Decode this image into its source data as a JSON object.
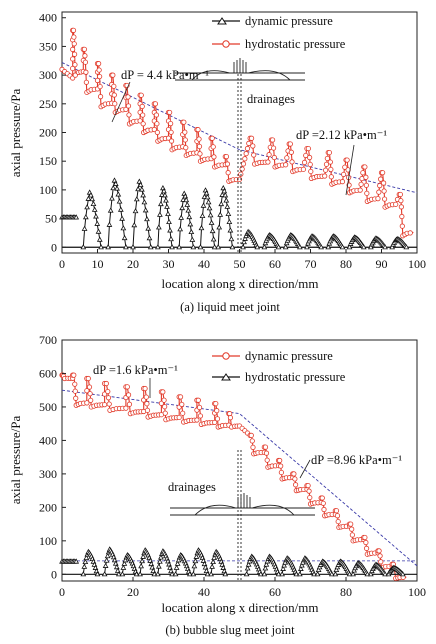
{
  "chart_data": [
    {
      "type": "line",
      "caption": "(a)   liquid meet joint",
      "xlabel": "location along x direction/mm",
      "ylabel": "axial pressure/Pa",
      "xlim": [
        0,
        100
      ],
      "ylim": [
        -10,
        410
      ],
      "xticks": [
        "0",
        "10",
        "20",
        "30",
        "40",
        "50",
        "60",
        "70",
        "80",
        "90",
        "100"
      ],
      "yticks": [
        "0",
        "50",
        "100",
        "150",
        "200",
        "250",
        "300",
        "350",
        "400"
      ],
      "legend": [
        "dynamic pressure",
        "hydrostatic pressure"
      ],
      "annotations": [
        "dP = 4.4 kPa•m⁻¹",
        "dP =2.12 kPa•m⁻¹",
        "drainages"
      ],
      "joint_x": 50,
      "series": [
        {
          "name": "dynamic pressure",
          "color": "#111111",
          "marker": "triangle",
          "lumps": [
            {
              "x": [
                0,
                4
              ],
              "base": 50,
              "peak": 52,
              "shape": "flat"
            },
            {
              "x": [
                6,
                11
              ],
              "base": 0,
              "peak": 100
            },
            {
              "x": [
                13,
                18
              ],
              "base": 0,
              "peak": 122
            },
            {
              "x": [
                20,
                25
              ],
              "base": 0,
              "peak": 120
            },
            {
              "x": [
                27,
                31
              ],
              "base": 0,
              "peak": 108
            },
            {
              "x": [
                33,
                37
              ],
              "base": 0,
              "peak": 98
            },
            {
              "x": [
                39,
                43
              ],
              "base": 0,
              "peak": 104
            },
            {
              "x": [
                44,
                48
              ],
              "base": 0,
              "peak": 108
            },
            {
              "x": [
                51,
                55
              ],
              "base": 0,
              "peak": 28
            },
            {
              "x": [
                57,
                61
              ],
              "base": 0,
              "peak": 22
            },
            {
              "x": [
                63,
                67
              ],
              "base": 0,
              "peak": 22
            },
            {
              "x": [
                69,
                73
              ],
              "base": 0,
              "peak": 20
            },
            {
              "x": [
                75,
                79
              ],
              "base": 0,
              "peak": 20
            },
            {
              "x": [
                81,
                85
              ],
              "base": 0,
              "peak": 18
            },
            {
              "x": [
                87,
                91
              ],
              "base": 0,
              "peak": 16
            },
            {
              "x": [
                93,
                97
              ],
              "base": 0,
              "peak": 15
            }
          ]
        },
        {
          "name": "hydrostatic pressure",
          "color": "#e23a2a",
          "marker": "circle",
          "steps": [
            {
              "x": [
                0,
                3
              ],
              "top": 310,
              "low": 295,
              "slope": true
            },
            {
              "x": [
                3,
                6
              ],
              "top": 378,
              "low": 300
            },
            {
              "x": [
                6,
                10
              ],
              "top": 345,
              "low": 270
            },
            {
              "x": [
                10,
                14
              ],
              "top": 320,
              "low": 245
            },
            {
              "x": [
                14,
                18
              ],
              "top": 300,
              "low": 235
            },
            {
              "x": [
                18,
                22
              ],
              "top": 282,
              "low": 215
            },
            {
              "x": [
                22,
                26
              ],
              "top": 265,
              "low": 200
            },
            {
              "x": [
                26,
                30
              ],
              "top": 250,
              "low": 185
            },
            {
              "x": [
                30,
                34
              ],
              "top": 235,
              "low": 170
            },
            {
              "x": [
                34,
                38
              ],
              "top": 218,
              "low": 160
            },
            {
              "x": [
                38,
                42
              ],
              "top": 205,
              "low": 150
            },
            {
              "x": [
                42,
                46
              ],
              "top": 190,
              "low": 140
            },
            {
              "x": [
                46,
                50
              ],
              "top": 158,
              "low": 115
            },
            {
              "x": [
                53,
                58
              ],
              "top": 190,
              "low": 145
            },
            {
              "x": [
                59,
                63
              ],
              "top": 187,
              "low": 140
            },
            {
              "x": [
                64,
                68
              ],
              "top": 180,
              "low": 132
            },
            {
              "x": [
                69,
                74
              ],
              "top": 172,
              "low": 120
            },
            {
              "x": [
                75,
                79
              ],
              "top": 165,
              "low": 110
            },
            {
              "x": [
                80,
                84
              ],
              "top": 152,
              "low": 95
            },
            {
              "x": [
                85,
                89
              ],
              "top": 140,
              "low": 80
            },
            {
              "x": [
                90,
                94
              ],
              "top": 130,
              "low": 70
            },
            {
              "x": [
                95,
                99
              ],
              "top": 92,
              "low": 20
            }
          ],
          "trend": [
            [
              0,
              322
            ],
            [
              50,
              170
            ],
            [
              50,
              170
            ],
            [
              100,
              95
            ]
          ]
        }
      ]
    },
    {
      "type": "line",
      "caption": "(b)   bubble slug meet joint",
      "xlabel": "location along x direction/mm",
      "ylabel": "axial pressure/Pa",
      "xlim": [
        0,
        100
      ],
      "ylim": [
        -20,
        700
      ],
      "xticks": [
        "0",
        "20",
        "40",
        "60",
        "80",
        "100"
      ],
      "yticks": [
        "0",
        "100",
        "200",
        "300",
        "400",
        "500",
        "600",
        "700"
      ],
      "legend": [
        "dynamic pressure",
        "hydrostatic pressure"
      ],
      "annotations": [
        "dP =1.6 kPa•m⁻¹",
        "dP =8.96 kPa•m⁻¹",
        "drainages"
      ],
      "joint_x": 50,
      "series": [
        {
          "name": "dynamic pressure",
          "color": "#e23a2a",
          "marker": "circle",
          "steps": [
            {
              "x": [
                0,
                3
              ],
              "top": 595,
              "low": 585
            },
            {
              "x": [
                3,
                7
              ],
              "top": 595,
              "low": 505
            },
            {
              "x": [
                7,
                12
              ],
              "top": 585,
              "low": 500
            },
            {
              "x": [
                12,
                18
              ],
              "top": 570,
              "low": 490
            },
            {
              "x": [
                18,
                23
              ],
              "top": 560,
              "low": 480
            },
            {
              "x": [
                23,
                28
              ],
              "top": 555,
              "low": 470
            },
            {
              "x": [
                28,
                33
              ],
              "top": 545,
              "low": 462
            },
            {
              "x": [
                33,
                38
              ],
              "top": 530,
              "low": 455
            },
            {
              "x": [
                38,
                43
              ],
              "top": 520,
              "low": 448
            },
            {
              "x": [
                43,
                47
              ],
              "top": 510,
              "low": 440
            },
            {
              "x": [
                47,
                50
              ],
              "top": 480,
              "low": 440
            },
            {
              "x": [
                53,
                57
              ],
              "top": 415,
              "low": 360
            },
            {
              "x": [
                57,
                61
              ],
              "top": 380,
              "low": 320
            },
            {
              "x": [
                61,
                65
              ],
              "top": 340,
              "low": 285
            },
            {
              "x": [
                65,
                69
              ],
              "top": 300,
              "low": 250
            },
            {
              "x": [
                69,
                73
              ],
              "top": 265,
              "low": 210
            },
            {
              "x": [
                73,
                77
              ],
              "top": 228,
              "low": 175
            },
            {
              "x": [
                77,
                81
              ],
              "top": 190,
              "low": 140
            },
            {
              "x": [
                81,
                85
              ],
              "top": 150,
              "low": 100
            },
            {
              "x": [
                85,
                89
              ],
              "top": 110,
              "low": 60
            },
            {
              "x": [
                89,
                93
              ],
              "top": 70,
              "low": 20
            },
            {
              "x": [
                93,
                97
              ],
              "top": 30,
              "low": -12
            }
          ],
          "trend": [
            [
              0,
              550
            ],
            [
              50,
              480
            ],
            [
              50,
              480
            ],
            [
              100,
              25
            ]
          ]
        },
        {
          "name": "hydrostatic pressure",
          "color": "#111111",
          "marker": "triangle",
          "lumps": [
            {
              "x": [
                0,
                4
              ],
              "base": 35,
              "peak": 38,
              "shape": "flat"
            },
            {
              "x": [
                6,
                10
              ],
              "base": 0,
              "peak": 70
            },
            {
              "x": [
                12,
                16
              ],
              "base": 0,
              "peak": 78
            },
            {
              "x": [
                17,
                21
              ],
              "base": 0,
              "peak": 60
            },
            {
              "x": [
                22,
                26
              ],
              "base": 0,
              "peak": 75
            },
            {
              "x": [
                27,
                31
              ],
              "base": 0,
              "peak": 72
            },
            {
              "x": [
                32,
                36
              ],
              "base": 0,
              "peak": 60
            },
            {
              "x": [
                37,
                41
              ],
              "base": 0,
              "peak": 75
            },
            {
              "x": [
                42,
                46
              ],
              "base": 0,
              "peak": 70
            },
            {
              "x": [
                52,
                56
              ],
              "base": 0,
              "peak": 55
            },
            {
              "x": [
                57,
                61
              ],
              "base": 0,
              "peak": 55
            },
            {
              "x": [
                62,
                66
              ],
              "base": 0,
              "peak": 50
            },
            {
              "x": [
                67,
                71
              ],
              "base": 0,
              "peak": 50
            },
            {
              "x": [
                72,
                76
              ],
              "base": 0,
              "peak": 40
            },
            {
              "x": [
                77,
                81
              ],
              "base": 0,
              "peak": 40
            },
            {
              "x": [
                82,
                86
              ],
              "base": 0,
              "peak": 35
            },
            {
              "x": [
                87,
                91
              ],
              "base": 0,
              "peak": 30
            },
            {
              "x": [
                92,
                96
              ],
              "base": 0,
              "peak": 20
            }
          ],
          "trend": [
            [
              0,
              40
            ],
            [
              100,
              40
            ]
          ]
        }
      ]
    }
  ]
}
